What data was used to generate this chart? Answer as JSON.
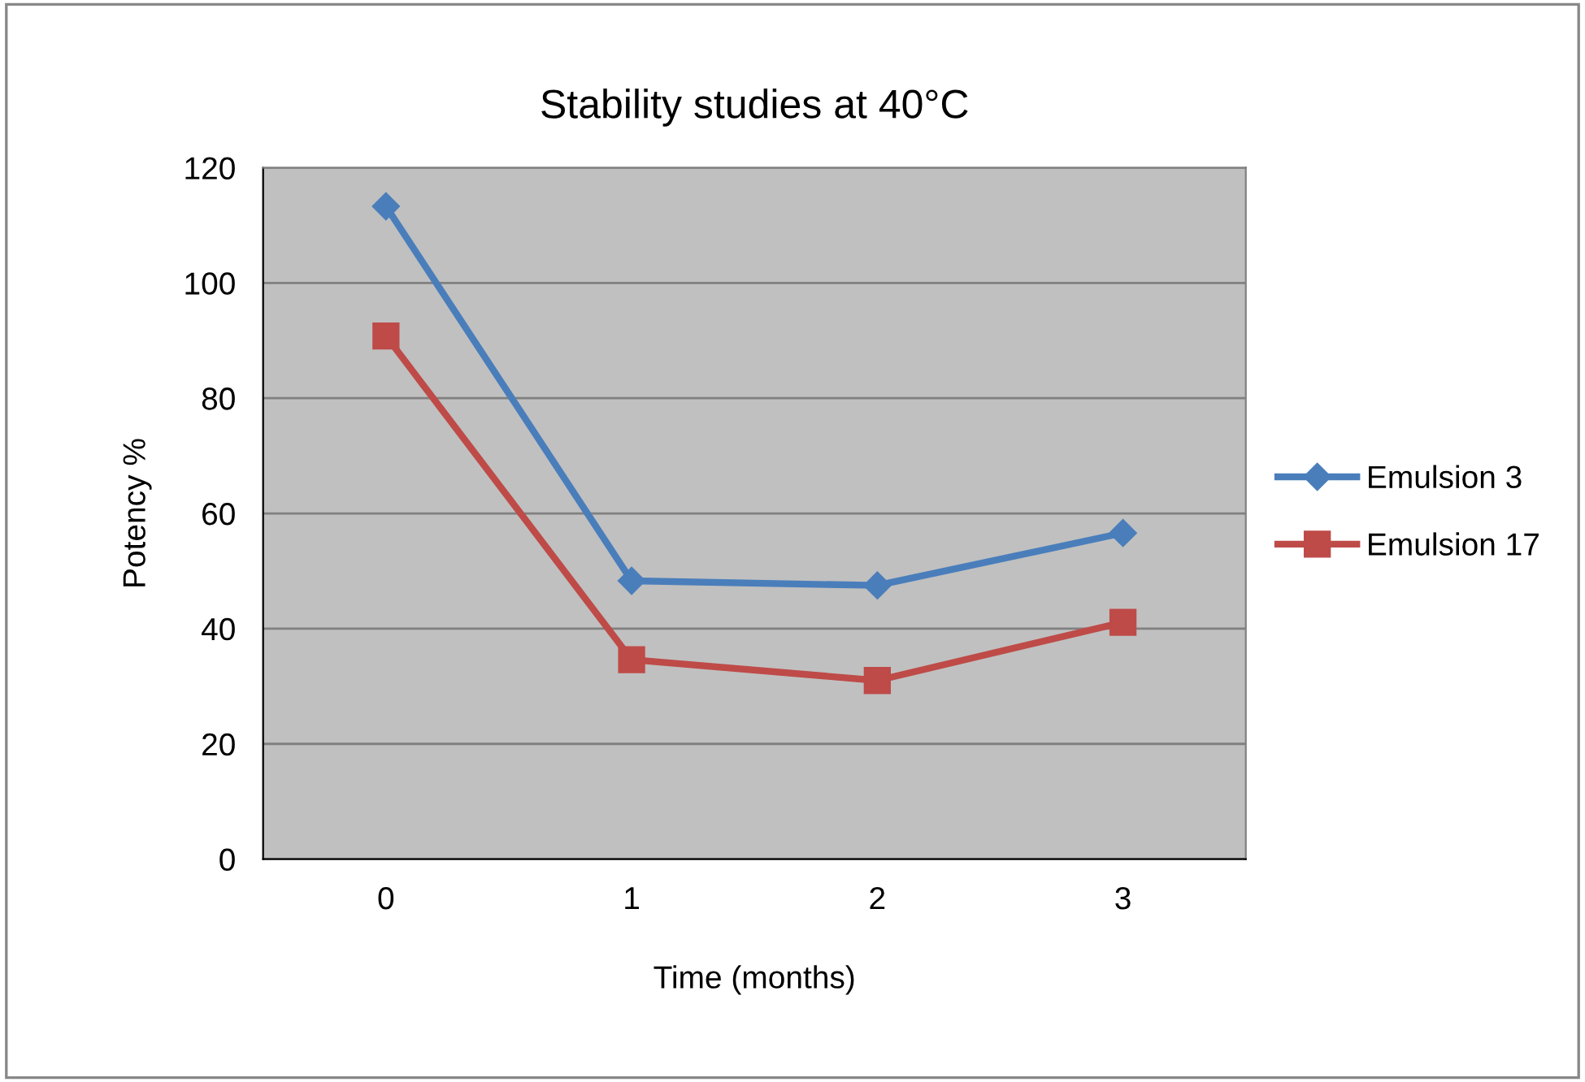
{
  "chart_data": {
    "type": "line",
    "title": "Stability studies at 40°C",
    "xlabel": "Time (months)",
    "ylabel": "Potency %",
    "categories": [
      "0",
      "1",
      "2",
      "3"
    ],
    "series": [
      {
        "name": "Emulsion 3",
        "color": "#4a7ebb",
        "marker": "diamond",
        "values": [
          113.3,
          48.3,
          47.5,
          56.6
        ]
      },
      {
        "name": "Emulsion 17",
        "color": "#be4b48",
        "marker": "square",
        "values": [
          90.8,
          34.6,
          31.0,
          41.1
        ]
      }
    ],
    "ylim": [
      0,
      120
    ],
    "yticks": [
      0,
      20,
      40,
      60,
      80,
      100,
      120
    ],
    "grid": "y",
    "legend": "right",
    "line_style": "solid"
  }
}
